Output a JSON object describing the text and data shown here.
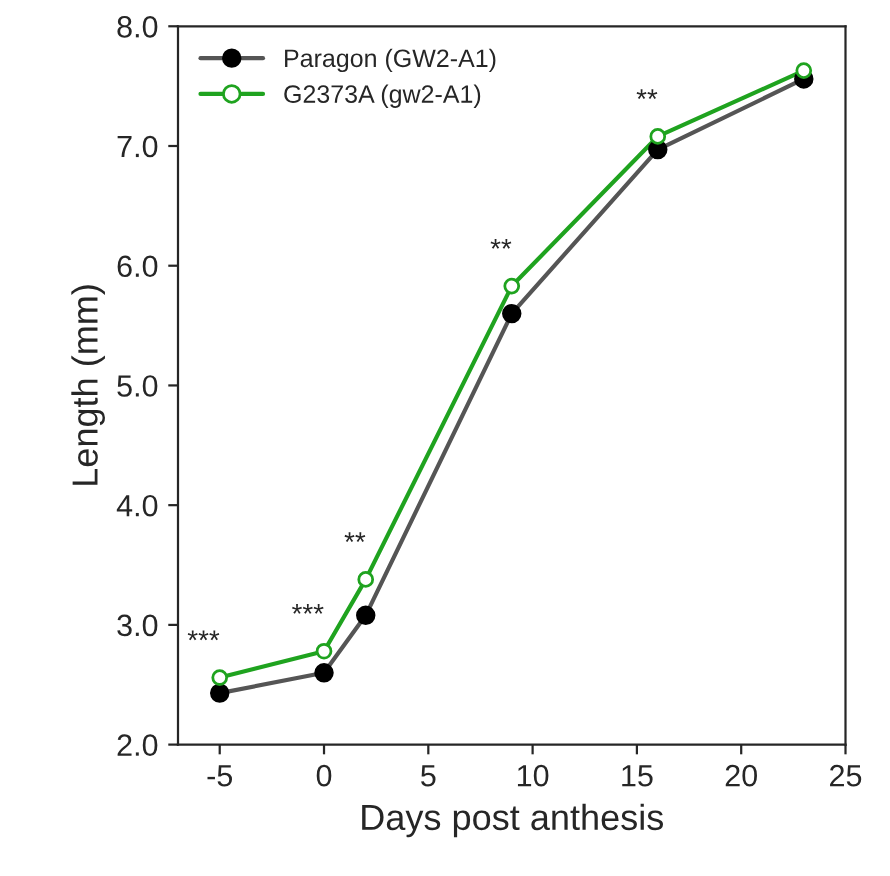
{
  "chart_data": {
    "type": "line",
    "xlabel": "Days post anthesis",
    "ylabel": "Length (mm)",
    "x": [
      -5,
      0,
      2,
      9,
      16,
      23
    ],
    "series": [
      {
        "name": "Paragon (GW2-A1)",
        "color": "#000000",
        "values": [
          2.43,
          2.6,
          3.08,
          5.6,
          6.97,
          7.56
        ]
      },
      {
        "name": "G2373A (gw2-A1)",
        "color": "#1fa31f",
        "values": [
          2.56,
          2.78,
          3.38,
          5.83,
          7.08,
          7.63
        ]
      }
    ],
    "xlim": [
      -7,
      25
    ],
    "xticks": [
      -5,
      0,
      5,
      10,
      15,
      20,
      25
    ],
    "ylim": [
      2,
      8
    ],
    "yticks": [
      {
        "value": 2,
        "label": "2.0"
      },
      {
        "value": 3,
        "label": "3.0"
      },
      {
        "value": 4,
        "label": "4.0"
      },
      {
        "value": 5,
        "label": "5.0"
      },
      {
        "value": 6,
        "label": "6.0"
      },
      {
        "value": 7,
        "label": "7.0"
      },
      {
        "value": 8,
        "label": "8.0"
      }
    ],
    "annotations": [
      {
        "text": "***",
        "x": -5,
        "y": 2.56
      },
      {
        "text": "***",
        "x": 0,
        "y": 2.78
      },
      {
        "text": "**",
        "x": 2,
        "y": 3.38
      },
      {
        "text": "**",
        "x": 9,
        "y": 5.83
      },
      {
        "text": "**",
        "x": 16,
        "y": 7.08
      }
    ],
    "marker": "circle",
    "line_style": "solid",
    "grid": false,
    "legend": "top left"
  }
}
